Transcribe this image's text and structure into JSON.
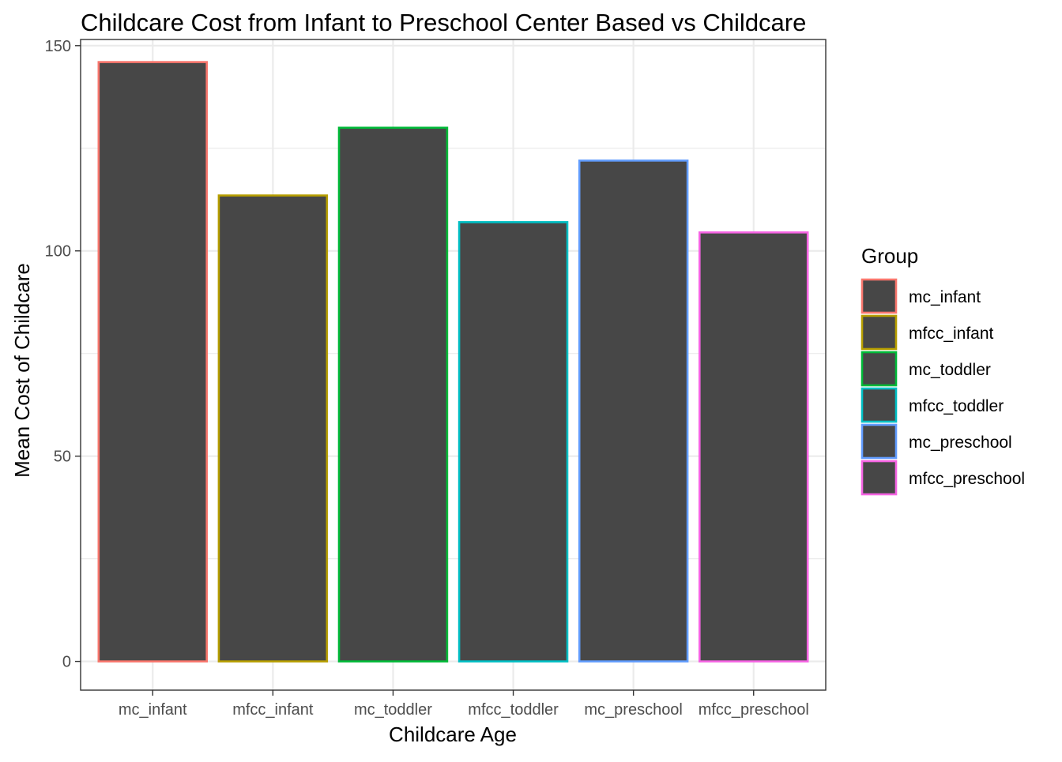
{
  "chart_data": {
    "type": "bar",
    "title": "Childcare Cost from Infant to Preschool Center Based vs Childcare",
    "xlabel": "Childcare Age",
    "ylabel": "Mean Cost of Childcare",
    "categories": [
      "mc_infant",
      "mfcc_infant",
      "mc_toddler",
      "mfcc_toddler",
      "mc_preschool",
      "mfcc_preschool"
    ],
    "values": [
      146,
      113.5,
      130,
      107,
      122,
      104.5
    ],
    "ylim": [
      -7,
      151.5
    ],
    "yticks": [
      0,
      50,
      100,
      150
    ],
    "grid": true,
    "fill_color": "#474747",
    "outline_colors": [
      "#F8766D",
      "#B79F00",
      "#00BA38",
      "#00BFC4",
      "#619CFF",
      "#F564E3"
    ],
    "legend": {
      "title": "Group",
      "position": "right",
      "entries": [
        "mc_infant",
        "mfcc_infant",
        "mc_toddler",
        "mfcc_toddler",
        "mc_preschool",
        "mfcc_preschool"
      ]
    }
  }
}
